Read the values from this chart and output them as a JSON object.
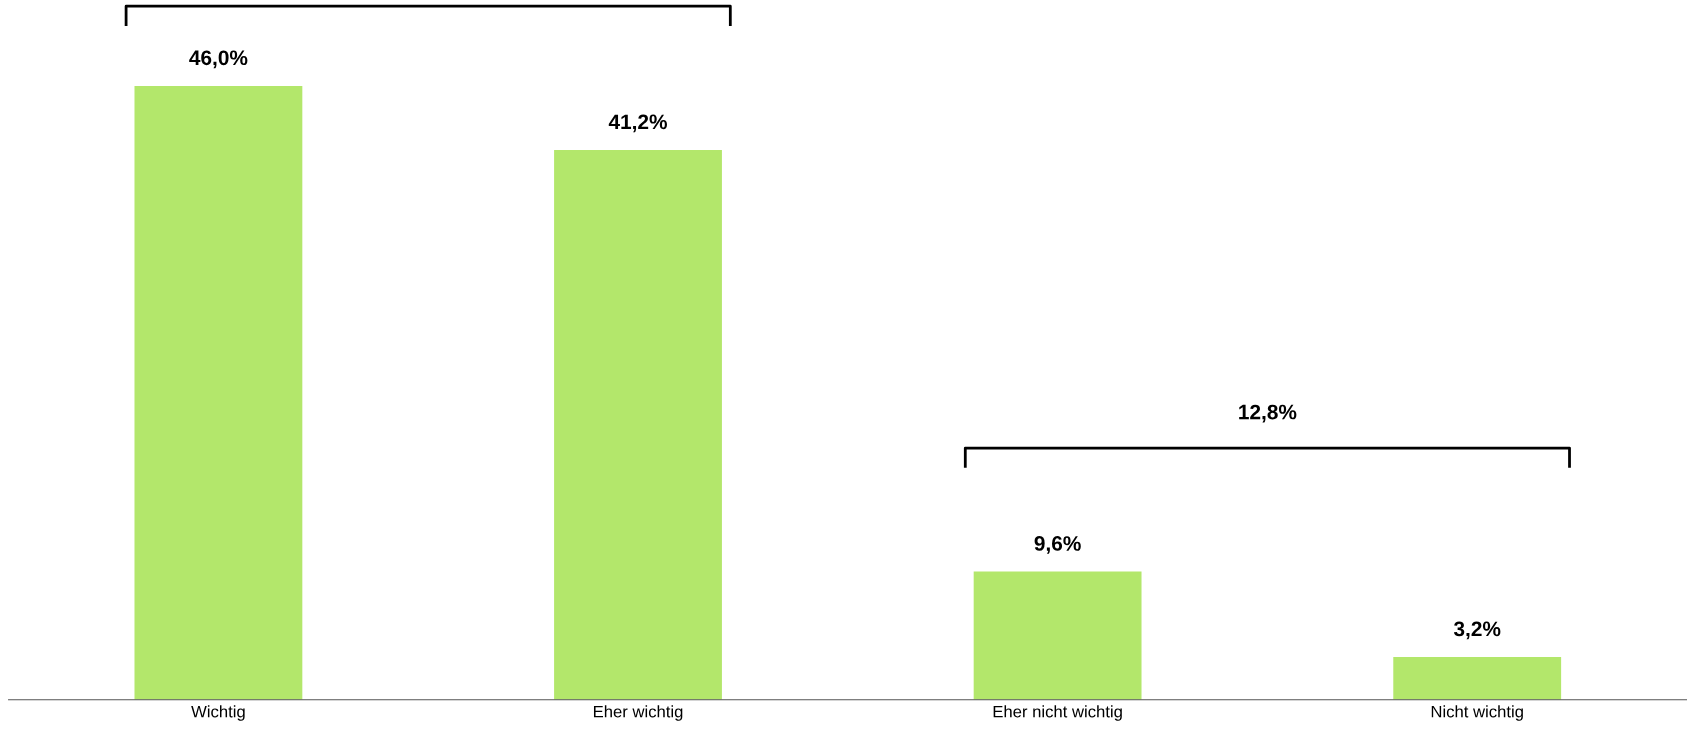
{
  "chart_data": {
    "type": "bar",
    "categories": [
      "Wichtig",
      "Eher wichtig",
      "Eher nicht wichtig",
      "Nicht wichtig"
    ],
    "values": [
      46.0,
      41.2,
      9.6,
      3.2
    ],
    "color": "#b3e76b",
    "value_labels": [
      "46,0%",
      "41,2%",
      "9,6%",
      "3,2%"
    ],
    "annotations": [
      "12,8%"
    ],
    "grid": false,
    "legend": false
  }
}
